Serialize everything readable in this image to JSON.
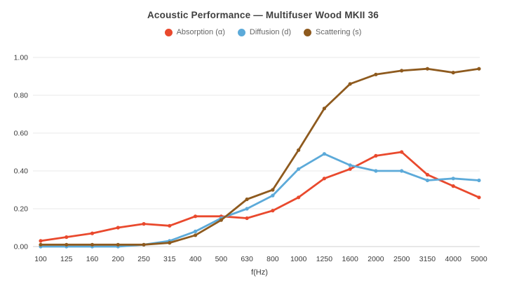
{
  "chart_data": {
    "type": "line",
    "title": "Acoustic Performance — Multifuser Wood MKII 36",
    "xlabel": "f(Hz)",
    "ylabel": "",
    "ylim": [
      0,
      1.0
    ],
    "grid": "horizontal",
    "legend_position": "top",
    "y_ticks": [
      "0.00",
      "0.20",
      "0.40",
      "0.60",
      "0.80",
      "1.00"
    ],
    "categories": [
      "100",
      "125",
      "160",
      "200",
      "250",
      "315",
      "400",
      "500",
      "630",
      "800",
      "1000",
      "1250",
      "1600",
      "2000",
      "2500",
      "3150",
      "4000",
      "5000"
    ],
    "series": [
      {
        "name": "Absorption (α)",
        "color": "#e9492d",
        "values": [
          0.03,
          0.05,
          0.07,
          0.1,
          0.12,
          0.11,
          0.16,
          0.16,
          0.15,
          0.19,
          0.26,
          0.36,
          0.41,
          0.48,
          0.5,
          0.38,
          0.32,
          0.26
        ]
      },
      {
        "name": "Diffusion (d)",
        "color": "#5caad9",
        "values": [
          0.0,
          0.0,
          0.0,
          0.0,
          0.01,
          0.03,
          0.08,
          0.15,
          0.2,
          0.27,
          0.41,
          0.49,
          0.43,
          0.4,
          0.4,
          0.35,
          0.36,
          0.35
        ]
      },
      {
        "name": "Scattering (s)",
        "color": "#8e5a1e",
        "values": [
          0.01,
          0.01,
          0.01,
          0.01,
          0.01,
          0.02,
          0.06,
          0.14,
          0.25,
          0.3,
          0.51,
          0.73,
          0.86,
          0.91,
          0.93,
          0.94,
          0.92,
          0.94
        ]
      }
    ],
    "style": {
      "grid_color": "#e8e8e8",
      "zero_line_color": "#cfcfcf",
      "background": "#ffffff"
    }
  }
}
